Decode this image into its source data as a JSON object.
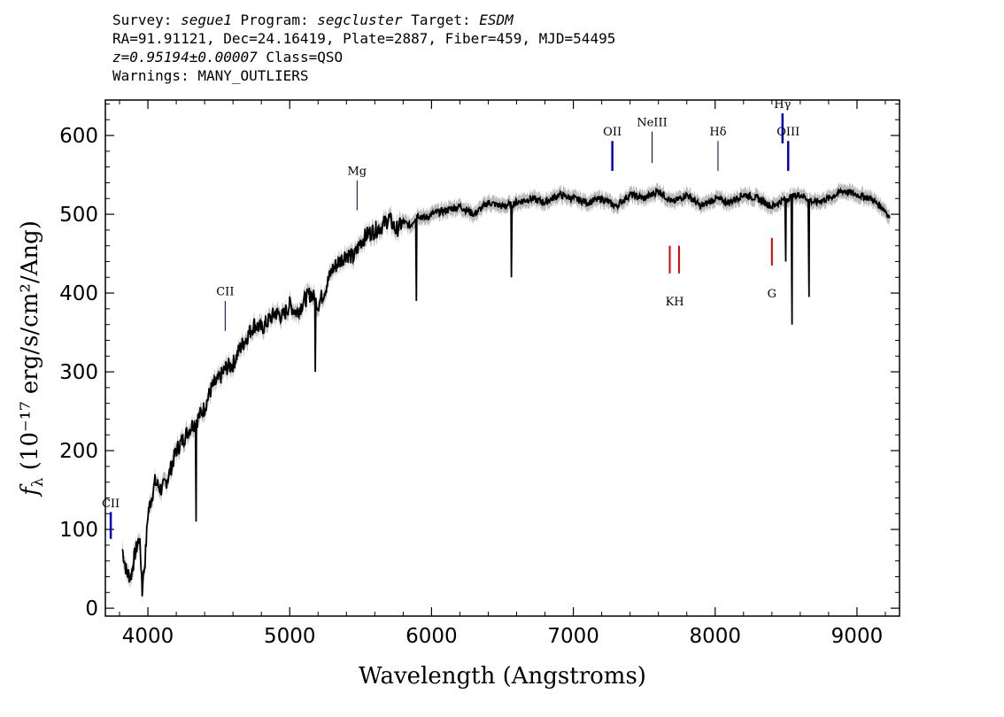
{
  "header": {
    "survey_label": "Survey:",
    "survey": "segue1",
    "program_label": "Program:",
    "program": "segcluster",
    "target_label": "Target:",
    "target": "ESDM",
    "line2": "RA=91.91121, Dec=24.16419, Plate=2887, Fiber=459, MJD=54495",
    "redshift": "z=0.95194±0.00007",
    "class": "Class=QSO",
    "warnings": "Warnings: MANY_OUTLIERS"
  },
  "chart_data": {
    "type": "line",
    "xlabel": "Wavelength (Angstroms)",
    "ylabel_main": "f",
    "ylabel_sub": "λ",
    "ylabel_units": "(10⁻¹⁷ erg/s/cm²/Ang)",
    "xlim": [
      3700,
      9300
    ],
    "ylim": [
      -10,
      645
    ],
    "x_ticks": [
      4000,
      5000,
      6000,
      7000,
      8000,
      9000
    ],
    "y_ticks": [
      0,
      100,
      200,
      300,
      400,
      500,
      600
    ],
    "colors": {
      "spectrum": "#000000",
      "error": "#bbbbbb",
      "emission": "#0000cc",
      "absorption": "#dd0000"
    },
    "series": [
      {
        "x": [
          3820,
          3850,
          3880,
          3910,
          3940,
          3960,
          3980,
          4000,
          4050,
          4100,
          4150,
          4200,
          4250,
          4300,
          4350,
          4400,
          4450,
          4500,
          4550,
          4600,
          4650,
          4700,
          4750,
          4800,
          4850,
          4900,
          4950,
          5000,
          5050,
          5100,
          5150,
          5200,
          5250,
          5300,
          5350,
          5400,
          5450,
          5500,
          5550,
          5600,
          5650,
          5700,
          5750,
          5800,
          5850,
          5900,
          5950,
          6000,
          6100,
          6200,
          6300,
          6400,
          6500,
          6600,
          6700,
          6800,
          6900,
          7000,
          7100,
          7200,
          7300,
          7400,
          7500,
          7600,
          7700,
          7800,
          7900,
          8000,
          8100,
          8200,
          8300,
          8400,
          8500,
          8600,
          8700,
          8800,
          8900,
          9000,
          9100,
          9200,
          9230
        ],
        "y": [
          75,
          45,
          40,
          70,
          90,
          30,
          60,
          120,
          160,
          150,
          170,
          200,
          215,
          230,
          240,
          255,
          280,
          290,
          305,
          310,
          330,
          345,
          360,
          355,
          365,
          375,
          370,
          385,
          375,
          390,
          400,
          385,
          405,
          430,
          440,
          450,
          445,
          465,
          475,
          480,
          485,
          495,
          480,
          490,
          485,
          500,
          495,
          500,
          505,
          510,
          500,
          515,
          510,
          515,
          520,
          515,
          525,
          520,
          515,
          520,
          510,
          525,
          520,
          530,
          515,
          525,
          510,
          520,
          515,
          525,
          520,
          510,
          520,
          525,
          515,
          520,
          530,
          525,
          520,
          505,
          495
        ]
      }
    ],
    "absorption_dips": [
      {
        "x": 3960,
        "y": 15
      },
      {
        "x": 4340,
        "y": 110
      },
      {
        "x": 5180,
        "y": 300
      },
      {
        "x": 5893,
        "y": 390
      },
      {
        "x": 6563,
        "y": 420
      },
      {
        "x": 8542,
        "y": 360
      },
      {
        "x": 8662,
        "y": 395
      },
      {
        "x": 8498,
        "y": 440
      }
    ],
    "emission_lines": [
      {
        "label": "CII",
        "x": 3738,
        "y0": 88,
        "y1": 122,
        "color": "blue",
        "label_y": 128
      },
      {
        "label": "CII",
        "x": 4545,
        "y0": 352,
        "y1": 390,
        "color": "thin",
        "label_y": 397
      },
      {
        "label": "Mg",
        "x": 5475,
        "y0": 505,
        "y1": 543,
        "color": "thin",
        "label_y": 550
      },
      {
        "label": "OII",
        "x": 7275,
        "y0": 555,
        "y1": 593,
        "color": "blue",
        "label_y": 600
      },
      {
        "label": "NeIII",
        "x": 7555,
        "y0": 565,
        "y1": 605,
        "color": "thin",
        "label_y": 612
      },
      {
        "label": "Hδ",
        "x": 8020,
        "y0": 555,
        "y1": 593,
        "color": "thin",
        "label_y": 600
      },
      {
        "label": "Hγ",
        "x": 8475,
        "y0": 590,
        "y1": 628,
        "color": "blue",
        "label_y": 635
      },
      {
        "label": "OIII",
        "x": 8515,
        "y0": 555,
        "y1": 593,
        "color": "blue",
        "label_y": 600
      }
    ],
    "absorption_lines": [
      {
        "label": "K",
        "x": 7680,
        "y0": 425,
        "y1": 460,
        "label_y": 400
      },
      {
        "label": "H",
        "x": 7745,
        "y0": 425,
        "y1": 460,
        "label_y": 400
      },
      {
        "label": "G",
        "x": 8400,
        "y0": 435,
        "y1": 470,
        "label_y": 410
      }
    ]
  }
}
